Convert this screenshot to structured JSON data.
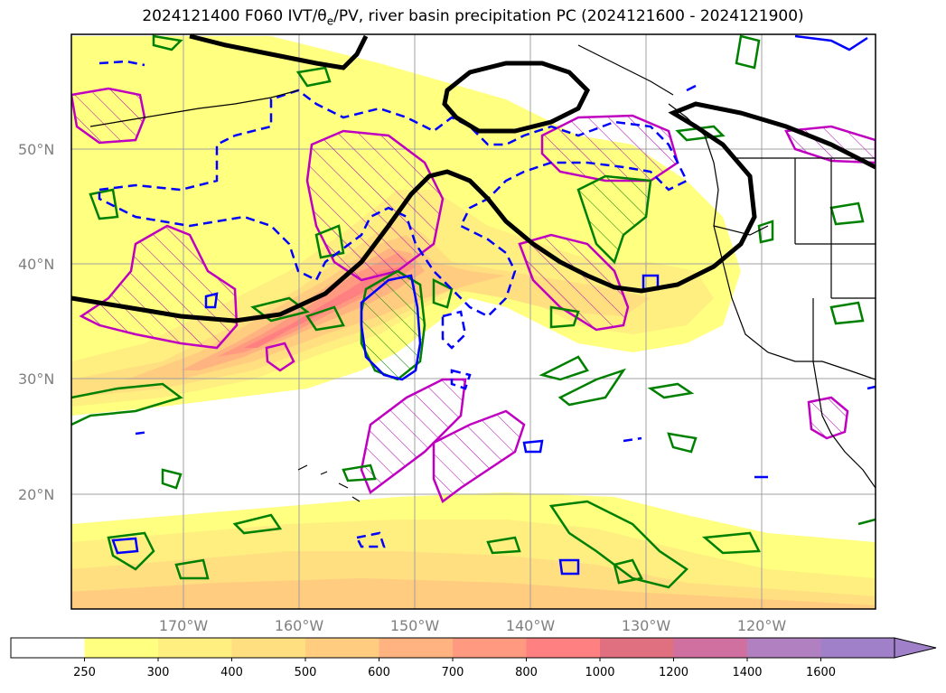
{
  "title": {
    "prefix": "2024121400 F060 IVT/θ",
    "sub": "e",
    "suffix": "/PV, river basin precipitation PC (2024121600 - 2024121900)"
  },
  "axes": {
    "lat_labels": [
      "50°N",
      "40°N",
      "30°N",
      "20°N"
    ],
    "lon_labels": [
      "170°W",
      "160°W",
      "150°W",
      "140°W",
      "130°W",
      "120°W"
    ]
  },
  "colorbar": {
    "labels": [
      "250",
      "300",
      "400",
      "500",
      "600",
      "700",
      "800",
      "1000",
      "1200",
      "1400",
      "1600"
    ],
    "colors": [
      "#ffffff",
      "#ffff80",
      "#ffee80",
      "#ffdf80",
      "#ffcc80",
      "#ffb380",
      "#ff9980",
      "#ff8080",
      "#e07080",
      "#d070a0",
      "#b080c0",
      "#a080c8"
    ]
  },
  "legend_colors": {
    "theta_e": "#000000",
    "pv_positive": "#0000ff",
    "precip_pc_positive": "#c000c0",
    "precip_pc_negative": "#008000",
    "coastline": "#000000",
    "grid": "#a0a0a0"
  }
}
